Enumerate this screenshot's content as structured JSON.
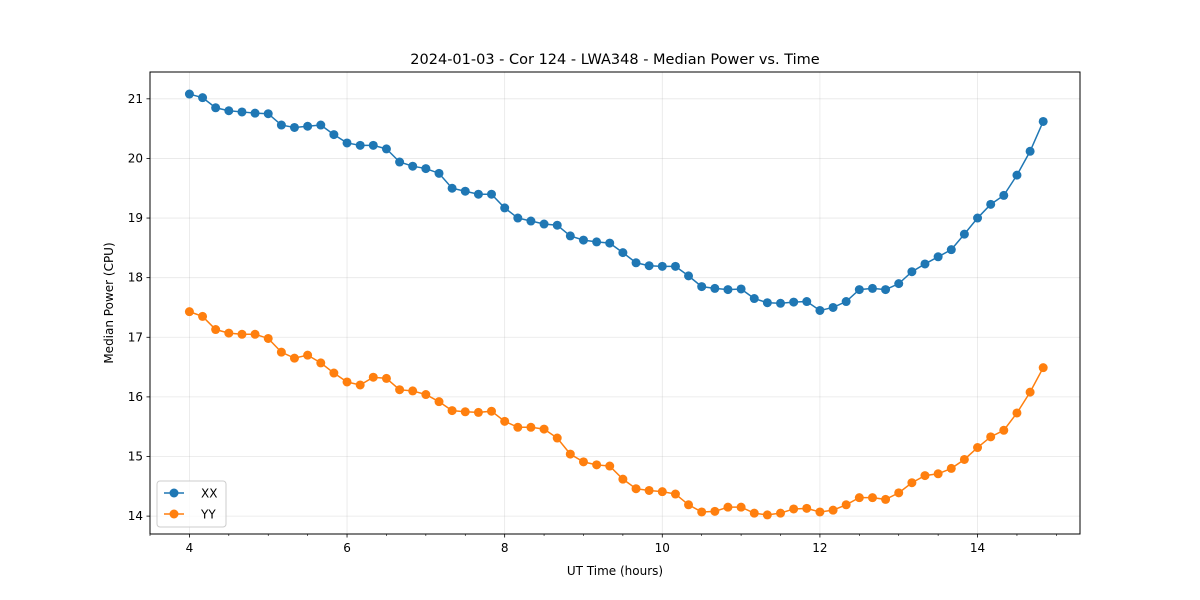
{
  "chart_data": {
    "type": "line",
    "title": "2024-01-03 - Cor 124 - LWA348 - Median Power vs. Time",
    "xlabel": "UT Time (hours)",
    "ylabel": "Median Power (CPU)",
    "xlim": [
      3.5,
      15.3
    ],
    "ylim": [
      13.7,
      21.45
    ],
    "xticks": [
      4,
      6,
      8,
      10,
      12,
      14
    ],
    "yticks": [
      14,
      15,
      16,
      17,
      18,
      19,
      20,
      21
    ],
    "grid": true,
    "legend_position": "lower-left",
    "x": [
      4.0,
      4.167,
      4.333,
      4.5,
      4.667,
      4.833,
      5.0,
      5.167,
      5.333,
      5.5,
      5.667,
      5.833,
      6.0,
      6.167,
      6.333,
      6.5,
      6.667,
      6.833,
      7.0,
      7.167,
      7.333,
      7.5,
      7.667,
      7.833,
      8.0,
      8.167,
      8.333,
      8.5,
      8.667,
      8.833,
      9.0,
      9.167,
      9.333,
      9.5,
      9.667,
      9.833,
      10.0,
      10.167,
      10.333,
      10.5,
      10.667,
      10.833,
      11.0,
      11.167,
      11.333,
      11.5,
      11.667,
      11.833,
      12.0,
      12.167,
      12.333,
      12.5,
      12.667,
      12.833,
      13.0,
      13.167,
      13.333,
      13.5,
      13.667,
      13.833,
      14.0,
      14.167,
      14.333,
      14.5,
      14.667,
      14.833
    ],
    "series": [
      {
        "name": "XX",
        "color": "#1f77b4",
        "values": [
          21.08,
          21.02,
          20.85,
          20.8,
          20.78,
          20.76,
          20.75,
          20.56,
          20.52,
          20.54,
          20.56,
          20.4,
          20.26,
          20.22,
          20.22,
          20.16,
          19.94,
          19.87,
          19.83,
          19.75,
          19.5,
          19.45,
          19.4,
          19.4,
          19.17,
          19.0,
          18.95,
          18.9,
          18.88,
          18.7,
          18.63,
          18.6,
          18.58,
          18.42,
          18.25,
          18.2,
          18.19,
          18.19,
          18.03,
          17.85,
          17.82,
          17.8,
          17.81,
          17.65,
          17.58,
          17.57,
          17.59,
          17.6,
          17.45,
          17.5,
          17.6,
          17.8,
          17.82,
          17.8,
          17.9,
          18.1,
          18.23,
          18.35,
          18.47,
          18.73,
          19.0,
          19.23,
          19.38,
          19.72,
          20.12,
          20.62
        ]
      },
      {
        "name": "YY",
        "color": "#ff7f0e",
        "values": [
          17.43,
          17.35,
          17.13,
          17.07,
          17.05,
          17.05,
          16.98,
          16.75,
          16.65,
          16.7,
          16.57,
          16.4,
          16.25,
          16.2,
          16.33,
          16.31,
          16.12,
          16.1,
          16.04,
          15.92,
          15.77,
          15.75,
          15.74,
          15.76,
          15.59,
          15.49,
          15.49,
          15.46,
          15.31,
          15.04,
          14.91,
          14.86,
          14.84,
          14.62,
          14.46,
          14.43,
          14.41,
          14.37,
          14.19,
          14.07,
          14.08,
          14.15,
          14.15,
          14.05,
          14.02,
          14.05,
          14.12,
          14.13,
          14.07,
          14.1,
          14.19,
          14.31,
          14.31,
          14.28,
          14.39,
          14.56,
          14.68,
          14.71,
          14.8,
          14.95,
          15.15,
          15.33,
          15.44,
          15.73,
          16.08,
          16.49
        ]
      }
    ]
  }
}
